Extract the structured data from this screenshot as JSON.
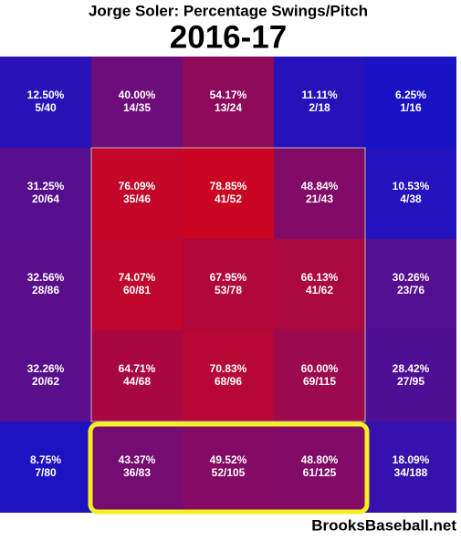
{
  "chart_data": {
    "type": "heatmap",
    "title": "Jorge Soler: Percentage Swings/Pitch",
    "subtitle": "2016-17",
    "values": [
      [
        12.5,
        40,
        54.17,
        11.11,
        6.25
      ],
      [
        31.25,
        76.09,
        78.85,
        48.84,
        10.53
      ],
      [
        32.56,
        74.07,
        67.95,
        66.13,
        30.26
      ],
      [
        32.26,
        64.71,
        70.83,
        60,
        28.42
      ],
      [
        8.75,
        43.37,
        49.52,
        48.8,
        18.09
      ]
    ],
    "value_labels": [
      [
        "12.50%",
        "40.00%",
        "54.17%",
        "11.11%",
        "6.25%"
      ],
      [
        "31.25%",
        "76.09%",
        "78.85%",
        "48.84%",
        "10.53%"
      ],
      [
        "32.56%",
        "74.07%",
        "67.95%",
        "66.13%",
        "30.26%"
      ],
      [
        "32.26%",
        "64.71%",
        "70.83%",
        "60.00%",
        "28.42%"
      ],
      [
        "8.75%",
        "43.37%",
        "49.52%",
        "48.80%",
        "18.09%"
      ]
    ],
    "counts": [
      [
        "5/40",
        "14/35",
        "13/24",
        "2/18",
        "1/16"
      ],
      [
        "20/64",
        "35/46",
        "41/52",
        "21/43",
        "4/38"
      ],
      [
        "28/86",
        "60/81",
        "53/78",
        "41/62",
        "23/76"
      ],
      [
        "20/62",
        "44/68",
        "68/96",
        "69/115",
        "27/95"
      ],
      [
        "7/80",
        "36/83",
        "52/105",
        "61/125",
        "34/188"
      ]
    ],
    "source": "BrooksBaseball.net"
  }
}
